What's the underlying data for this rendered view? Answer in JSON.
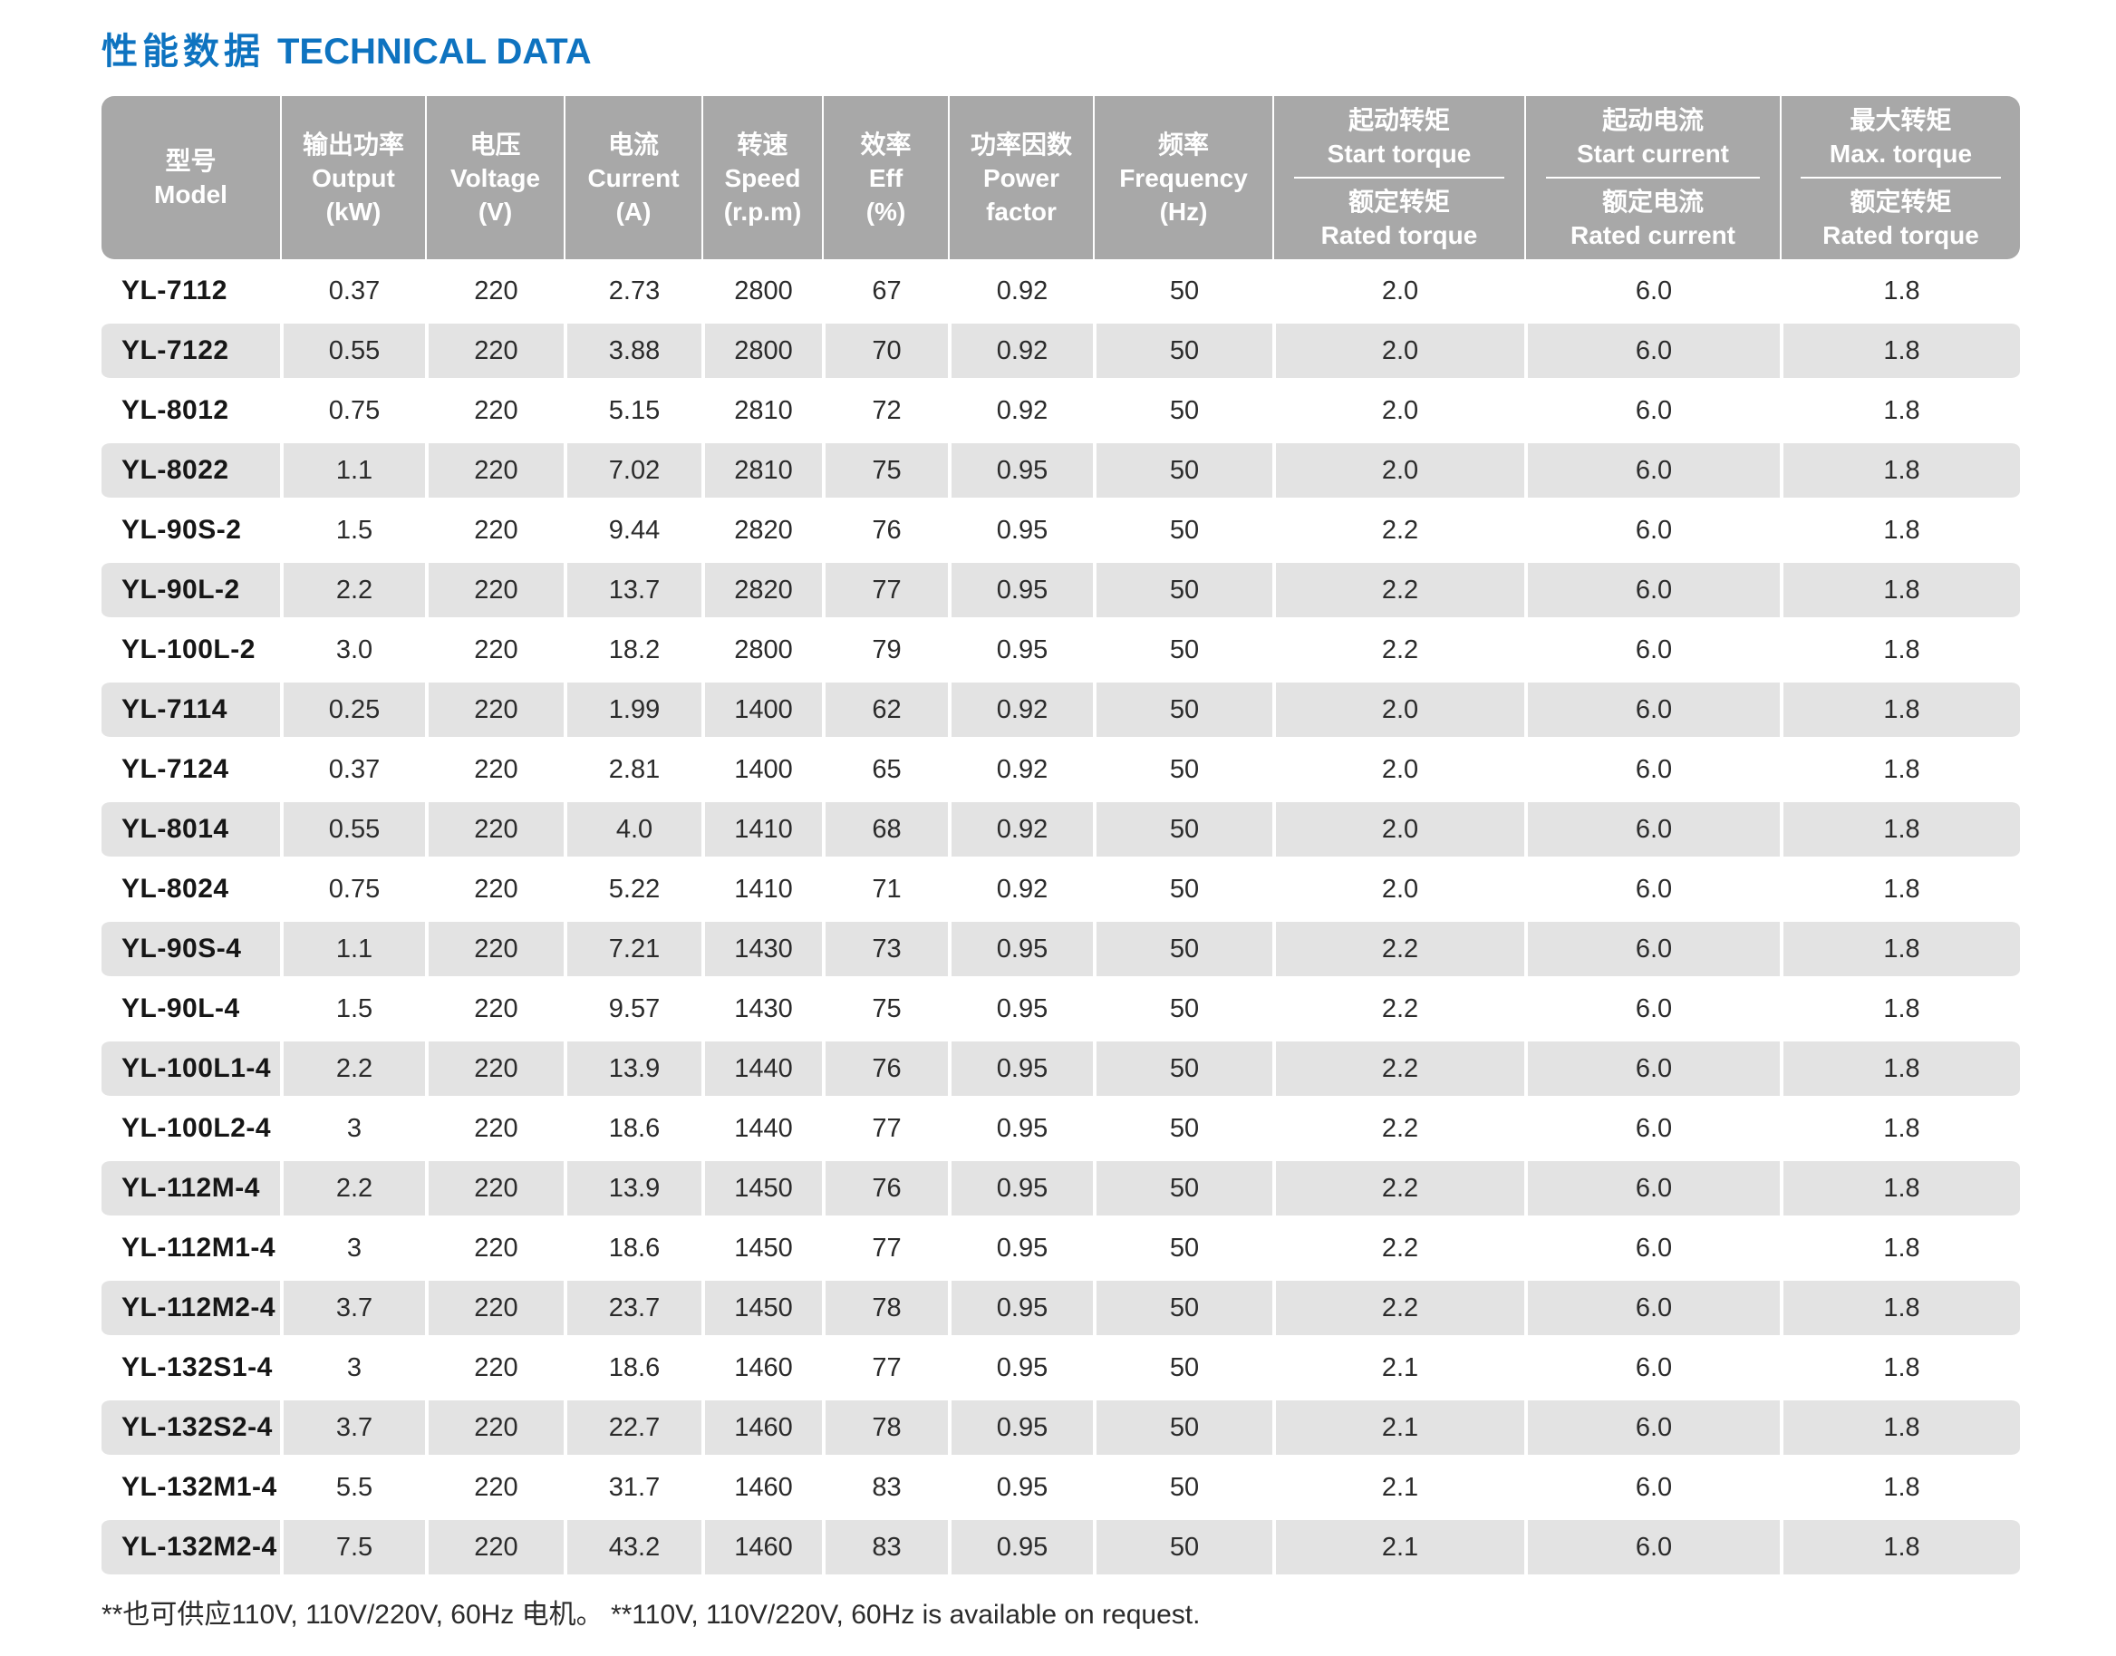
{
  "page": {
    "title_zh": "性能数据",
    "title_en": "TECHNICAL DATA",
    "footnote": "**也可供应110V, 110V/220V, 60Hz 电机。 **110V, 110V/220V, 60Hz is available on request.",
    "colors": {
      "title_blue": "#0e73c0",
      "header_gray": "#a8a8a8",
      "stripe_gray": "#e3e3e3"
    }
  },
  "table": {
    "simple_columns": [
      {
        "zh": "型号",
        "en": "Model",
        "unit": ""
      },
      {
        "zh": "输出功率",
        "en": "Output",
        "unit": "(kW)"
      },
      {
        "zh": "电压",
        "en": "Voltage",
        "unit": "(V)"
      },
      {
        "zh": "电流",
        "en": "Current",
        "unit": "(A)"
      },
      {
        "zh": "转速",
        "en": "Speed",
        "unit": "(r.p.m)"
      },
      {
        "zh": "效率",
        "en": "Eff",
        "unit": "(%)"
      },
      {
        "zh": "功率因数",
        "en": "Power",
        "unit": "factor"
      },
      {
        "zh": "频率",
        "en": "Frequency",
        "unit": "(Hz)"
      }
    ],
    "ratio_columns": [
      {
        "top_zh": "起动转矩",
        "top_en": "Start torque",
        "bottom_zh": "额定转矩",
        "bottom_en": "Rated torque"
      },
      {
        "top_zh": "起动电流",
        "top_en": "Start current",
        "bottom_zh": "额定电流",
        "bottom_en": "Rated current"
      },
      {
        "top_zh": "最大转矩",
        "top_en": "Max. torque",
        "bottom_zh": "额定转矩",
        "bottom_en": "Rated torque"
      }
    ],
    "rows": [
      [
        "YL-7112",
        "0.37",
        "220",
        "2.73",
        "2800",
        "67",
        "0.92",
        "50",
        "2.0",
        "6.0",
        "1.8"
      ],
      [
        "YL-7122",
        "0.55",
        "220",
        "3.88",
        "2800",
        "70",
        "0.92",
        "50",
        "2.0",
        "6.0",
        "1.8"
      ],
      [
        "YL-8012",
        "0.75",
        "220",
        "5.15",
        "2810",
        "72",
        "0.92",
        "50",
        "2.0",
        "6.0",
        "1.8"
      ],
      [
        "YL-8022",
        "1.1",
        "220",
        "7.02",
        "2810",
        "75",
        "0.95",
        "50",
        "2.0",
        "6.0",
        "1.8"
      ],
      [
        "YL-90S-2",
        "1.5",
        "220",
        "9.44",
        "2820",
        "76",
        "0.95",
        "50",
        "2.2",
        "6.0",
        "1.8"
      ],
      [
        "YL-90L-2",
        "2.2",
        "220",
        "13.7",
        "2820",
        "77",
        "0.95",
        "50",
        "2.2",
        "6.0",
        "1.8"
      ],
      [
        "YL-100L-2",
        "3.0",
        "220",
        "18.2",
        "2800",
        "79",
        "0.95",
        "50",
        "2.2",
        "6.0",
        "1.8"
      ],
      [
        "YL-7114",
        "0.25",
        "220",
        "1.99",
        "1400",
        "62",
        "0.92",
        "50",
        "2.0",
        "6.0",
        "1.8"
      ],
      [
        "YL-7124",
        "0.37",
        "220",
        "2.81",
        "1400",
        "65",
        "0.92",
        "50",
        "2.0",
        "6.0",
        "1.8"
      ],
      [
        "YL-8014",
        "0.55",
        "220",
        "4.0",
        "1410",
        "68",
        "0.92",
        "50",
        "2.0",
        "6.0",
        "1.8"
      ],
      [
        "YL-8024",
        "0.75",
        "220",
        "5.22",
        "1410",
        "71",
        "0.92",
        "50",
        "2.0",
        "6.0",
        "1.8"
      ],
      [
        "YL-90S-4",
        "1.1",
        "220",
        "7.21",
        "1430",
        "73",
        "0.95",
        "50",
        "2.2",
        "6.0",
        "1.8"
      ],
      [
        "YL-90L-4",
        "1.5",
        "220",
        "9.57",
        "1430",
        "75",
        "0.95",
        "50",
        "2.2",
        "6.0",
        "1.8"
      ],
      [
        "YL-100L1-4",
        "2.2",
        "220",
        "13.9",
        "1440",
        "76",
        "0.95",
        "50",
        "2.2",
        "6.0",
        "1.8"
      ],
      [
        "YL-100L2-4",
        "3",
        "220",
        "18.6",
        "1440",
        "77",
        "0.95",
        "50",
        "2.2",
        "6.0",
        "1.8"
      ],
      [
        "YL-112M-4",
        "2.2",
        "220",
        "13.9",
        "1450",
        "76",
        "0.95",
        "50",
        "2.2",
        "6.0",
        "1.8"
      ],
      [
        "YL-112M1-4",
        "3",
        "220",
        "18.6",
        "1450",
        "77",
        "0.95",
        "50",
        "2.2",
        "6.0",
        "1.8"
      ],
      [
        "YL-112M2-4",
        "3.7",
        "220",
        "23.7",
        "1450",
        "78",
        "0.95",
        "50",
        "2.2",
        "6.0",
        "1.8"
      ],
      [
        "YL-132S1-4",
        "3",
        "220",
        "18.6",
        "1460",
        "77",
        "0.95",
        "50",
        "2.1",
        "6.0",
        "1.8"
      ],
      [
        "YL-132S2-4",
        "3.7",
        "220",
        "22.7",
        "1460",
        "78",
        "0.95",
        "50",
        "2.1",
        "6.0",
        "1.8"
      ],
      [
        "YL-132M1-4",
        "5.5",
        "220",
        "31.7",
        "1460",
        "83",
        "0.95",
        "50",
        "2.1",
        "6.0",
        "1.8"
      ],
      [
        "YL-132M2-4",
        "7.5",
        "220",
        "43.2",
        "1460",
        "83",
        "0.95",
        "50",
        "2.1",
        "6.0",
        "1.8"
      ]
    ]
  }
}
